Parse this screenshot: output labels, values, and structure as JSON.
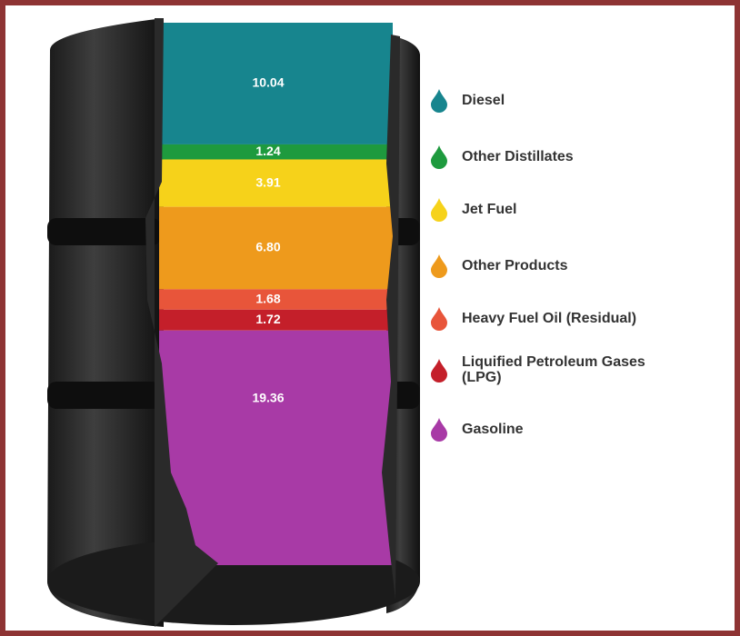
{
  "chart_data": {
    "type": "stacked_barrel",
    "series": [
      {
        "name": "Diesel",
        "color": "#17858e",
        "values": [
          10.04
        ]
      },
      {
        "name": "Other Distillates",
        "color": "#1e9a3e",
        "values": [
          1.24
        ]
      },
      {
        "name": "Jet Fuel",
        "color": "#f6d21a",
        "values": [
          3.91
        ]
      },
      {
        "name": "Other Products",
        "color": "#ee9a1c",
        "values": [
          6.8
        ],
        "value_labels": [
          "6.80"
        ]
      },
      {
        "name": "Heavy Fuel Oil (Residual)",
        "color": "#e8553a",
        "values": [
          1.68
        ]
      },
      {
        "name": "Liquified Petroleum Gases (LPG)",
        "color": "#c41f2a",
        "values": [
          1.72
        ]
      },
      {
        "name": "Gasoline",
        "color": "#a83aa6",
        "values": [
          19.36
        ]
      }
    ]
  }
}
